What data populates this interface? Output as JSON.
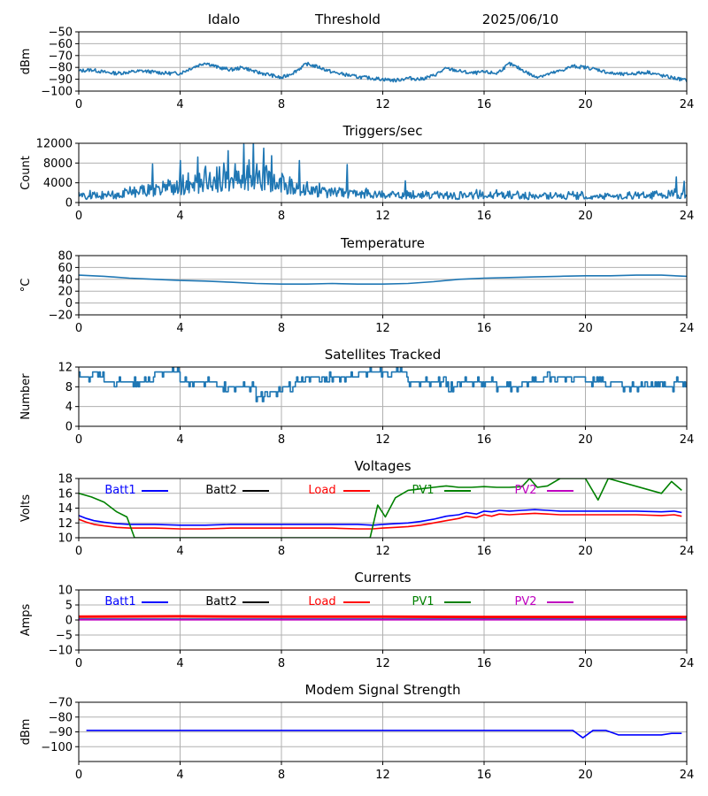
{
  "header": {
    "site": "Idalo",
    "mode": "Threshold",
    "date": "2025/06/10"
  },
  "colors": {
    "series_default": "#1f77b4",
    "grid": "#b0b0b0",
    "Batt1": "#0000ff",
    "Batt2": "#000000",
    "Load": "#ff0000",
    "PV1": "#008000",
    "PV2": "#bf00bf"
  },
  "chart_data": [
    {
      "id": "threshold",
      "type": "line",
      "title": "",
      "xlabel": "",
      "ylabel": "dBm",
      "xlim": [
        0,
        24
      ],
      "ylim": [
        -100,
        -50
      ],
      "xticks": [
        0,
        4,
        8,
        12,
        16,
        20,
        24
      ],
      "yticks": [
        -100,
        -90,
        -80,
        -70,
        -60,
        -50
      ],
      "grid": true,
      "series": [
        {
          "color": "#1f77b4",
          "x": [
            0,
            0.5,
            1,
            1.5,
            2,
            2.5,
            3,
            3.5,
            4,
            4.5,
            5,
            5.5,
            6,
            6.5,
            7,
            7.5,
            8,
            8.5,
            9,
            9.5,
            10,
            10.5,
            11,
            11.5,
            12,
            12.5,
            13,
            13.5,
            14,
            14.5,
            15,
            15.5,
            16,
            16.5,
            17,
            17.5,
            18,
            18.5,
            19,
            19.5,
            20,
            20.5,
            21,
            21.5,
            22,
            22.5,
            23,
            23.5,
            24
          ],
          "y": [
            -83,
            -82,
            -84,
            -85,
            -84,
            -83,
            -84,
            -85,
            -85,
            -80,
            -76,
            -80,
            -82,
            -80,
            -84,
            -86,
            -89,
            -84,
            -77,
            -80,
            -84,
            -86,
            -88,
            -89,
            -90,
            -91,
            -89,
            -90,
            -87,
            -81,
            -83,
            -85,
            -84,
            -85,
            -77,
            -82,
            -88,
            -86,
            -83,
            -79,
            -80,
            -82,
            -85,
            -86,
            -85,
            -84,
            -87,
            -89,
            -91
          ],
          "noise": 1.5
        }
      ]
    },
    {
      "id": "triggers",
      "type": "line",
      "title": "Triggers/sec",
      "xlabel": "",
      "ylabel": "Count",
      "xlim": [
        0,
        24
      ],
      "ylim": [
        0,
        12000
      ],
      "xticks": [
        0,
        4,
        8,
        12,
        16,
        20,
        24
      ],
      "yticks": [
        0,
        4000,
        8000,
        12000
      ],
      "grid": true,
      "series": [
        {
          "color": "#1f77b4",
          "x": [
            0,
            1,
            2,
            3,
            4,
            4.5,
            5,
            5.5,
            6,
            6.5,
            7,
            7.5,
            8,
            8.5,
            9,
            10,
            11,
            12,
            13,
            14,
            15,
            16,
            17,
            18,
            19,
            20,
            21,
            22,
            23,
            24
          ],
          "y": [
            1400,
            1500,
            1900,
            2600,
            3200,
            3600,
            4000,
            4400,
            4800,
            5300,
            5600,
            5000,
            4200,
            3300,
            2500,
            2000,
            1800,
            1600,
            1500,
            1400,
            1400,
            1500,
            1400,
            1300,
            1400,
            1400,
            1300,
            1300,
            1500,
            1900
          ],
          "spikes": [
            [
              2.9,
              7800
            ],
            [
              4.0,
              8500
            ],
            [
              4.7,
              9200
            ],
            [
              5.9,
              10500
            ],
            [
              6.5,
              11800
            ],
            [
              6.9,
              12500
            ],
            [
              7.3,
              11000
            ],
            [
              7.6,
              9500
            ],
            [
              8.7,
              8500
            ],
            [
              10.6,
              7700
            ],
            [
              12.9,
              4400
            ],
            [
              23.6,
              5200
            ],
            [
              23.9,
              4300
            ]
          ],
          "noise": 0.6
        }
      ]
    },
    {
      "id": "temperature",
      "type": "line",
      "title": "Temperature",
      "xlabel": "",
      "ylabel": "°C",
      "xlim": [
        0,
        24
      ],
      "ylim": [
        -20,
        80
      ],
      "xticks": [
        0,
        4,
        8,
        12,
        16,
        20,
        24
      ],
      "yticks": [
        -20,
        0,
        20,
        40,
        60,
        80
      ],
      "grid": true,
      "series": [
        {
          "color": "#1f77b4",
          "x": [
            0,
            1,
            2,
            3,
            4,
            5,
            6,
            7,
            8,
            9,
            10,
            11,
            12,
            13,
            14,
            15,
            16,
            17,
            18,
            19,
            20,
            21,
            22,
            23,
            24
          ],
          "y": [
            47,
            45,
            42,
            40,
            38,
            37,
            35,
            33,
            32,
            32,
            33,
            32,
            32,
            33,
            36,
            40,
            42,
            43,
            44,
            45,
            46,
            46,
            47,
            47,
            45
          ]
        }
      ]
    },
    {
      "id": "satellites",
      "type": "line",
      "title": "Satellites Tracked",
      "xlabel": "",
      "ylabel": "Number",
      "xlim": [
        0,
        24
      ],
      "ylim": [
        0,
        12
      ],
      "xticks": [
        0,
        4,
        8,
        12,
        16,
        20,
        24
      ],
      "yticks": [
        0,
        4,
        8,
        12
      ],
      "grid": true,
      "series": [
        {
          "color": "#1f77b4",
          "x": [
            0,
            0.5,
            1,
            1.5,
            2,
            2.5,
            3,
            3.5,
            4,
            4.5,
            5,
            5.5,
            6,
            6.5,
            7,
            7.5,
            8,
            8.5,
            9,
            9.5,
            10,
            10.5,
            11,
            11.5,
            12,
            12.5,
            13,
            13.5,
            14,
            14.5,
            15,
            15.5,
            16,
            16.5,
            17,
            17.5,
            18,
            18.5,
            19,
            19.5,
            20,
            20.5,
            21,
            21.5,
            22,
            22.5,
            23,
            23.5,
            24
          ],
          "y": [
            10,
            11,
            9,
            9,
            9,
            9,
            11,
            11,
            9,
            9,
            9,
            8,
            8,
            8,
            6,
            7,
            8,
            9,
            10,
            10,
            10,
            10,
            11,
            11,
            11,
            11,
            9,
            9,
            9,
            8,
            9,
            9,
            9,
            8,
            8,
            9,
            9,
            10,
            10,
            10,
            9,
            9,
            9,
            8,
            8,
            8,
            8,
            9,
            9
          ],
          "steps": true
        }
      ]
    },
    {
      "id": "voltages",
      "type": "line",
      "title": "Voltages",
      "xlabel": "",
      "ylabel": "Volts",
      "xlim": [
        0,
        24
      ],
      "ylim": [
        10,
        18
      ],
      "xticks": [
        0,
        4,
        8,
        12,
        16,
        20,
        24
      ],
      "yticks": [
        10,
        12,
        14,
        16,
        18
      ],
      "grid": true,
      "legend": [
        "Batt1",
        "Batt2",
        "Load",
        "PV1",
        "PV2"
      ],
      "series": [
        {
          "name": "Batt1",
          "color": "#0000ff",
          "x": [
            0,
            0.3,
            0.6,
            1,
            1.5,
            2,
            3,
            4,
            5,
            6,
            7,
            8,
            9,
            10,
            11,
            11.6,
            12,
            12.5,
            13,
            13.5,
            14,
            14.5,
            15,
            15.3,
            15.7,
            16,
            16.3,
            16.6,
            17,
            17.5,
            18,
            18.5,
            19,
            20,
            21,
            22,
            23,
            23.5,
            23.8
          ],
          "y": [
            13,
            12.6,
            12.3,
            12.1,
            11.9,
            11.8,
            11.8,
            11.7,
            11.7,
            11.8,
            11.8,
            11.8,
            11.8,
            11.8,
            11.8,
            11.7,
            11.8,
            11.9,
            12.0,
            12.2,
            12.5,
            12.9,
            13.1,
            13.4,
            13.2,
            13.6,
            13.5,
            13.7,
            13.6,
            13.7,
            13.8,
            13.7,
            13.6,
            13.6,
            13.6,
            13.6,
            13.5,
            13.6,
            13.4
          ]
        },
        {
          "name": "Load",
          "color": "#ff0000",
          "x": [
            0,
            0.3,
            0.6,
            1,
            1.5,
            2,
            3,
            4,
            5,
            6,
            7,
            8,
            9,
            10,
            11,
            11.6,
            12,
            12.5,
            13,
            13.5,
            14,
            14.5,
            15,
            15.3,
            15.7,
            16,
            16.3,
            16.6,
            17,
            17.5,
            18,
            18.5,
            19,
            20,
            21,
            22,
            23,
            23.5,
            23.8
          ],
          "y": [
            12.5,
            12.1,
            11.8,
            11.6,
            11.4,
            11.3,
            11.3,
            11.2,
            11.2,
            11.3,
            11.3,
            11.3,
            11.3,
            11.3,
            11.2,
            11.2,
            11.3,
            11.4,
            11.5,
            11.7,
            12.0,
            12.3,
            12.6,
            12.9,
            12.7,
            13.1,
            12.9,
            13.2,
            13.1,
            13.2,
            13.3,
            13.2,
            13.1,
            13.1,
            13.1,
            13.1,
            13.0,
            13.1,
            12.9
          ]
        },
        {
          "name": "PV1",
          "color": "#008000",
          "x": [
            0,
            0.5,
            1,
            1.5,
            1.9,
            2.2,
            11.5,
            11.8,
            12.1,
            12.5,
            13,
            13.5,
            14,
            14.5,
            15,
            15.5,
            16,
            16.5,
            17,
            17.5,
            17.8,
            18.1,
            18.5,
            19.0,
            19.3,
            20,
            20.5,
            20.9,
            23,
            23.4,
            23.8
          ],
          "y": [
            16,
            15.5,
            14.8,
            13.5,
            12.8,
            10,
            10,
            14.4,
            12.8,
            15.4,
            16.4,
            16.6,
            16.8,
            17,
            16.8,
            16.8,
            16.9,
            16.8,
            16.8,
            16.9,
            18,
            16.8,
            17.0,
            18,
            18,
            18,
            15.1,
            18,
            16,
            17.6,
            16.4
          ]
        },
        {
          "name": "PV2",
          "color": "#bf00bf",
          "x": [],
          "y": []
        },
        {
          "name": "Batt2",
          "color": "#000000",
          "x": [],
          "y": []
        }
      ]
    },
    {
      "id": "currents",
      "type": "line",
      "title": "Currents",
      "xlabel": "",
      "ylabel": "Amps",
      "xlim": [
        0,
        24
      ],
      "ylim": [
        -10,
        10
      ],
      "xticks": [
        0,
        4,
        8,
        12,
        16,
        20,
        24
      ],
      "yticks": [
        -10,
        -5,
        0,
        5,
        10
      ],
      "grid": true,
      "legend": [
        "Batt1",
        "Batt2",
        "Load",
        "PV1",
        "PV2"
      ],
      "series": [
        {
          "name": "Load",
          "color": "#ff0000",
          "x": [
            0,
            4,
            8,
            12,
            16,
            20,
            24
          ],
          "y": [
            1.1,
            1.2,
            1.1,
            1.1,
            1.0,
            1.0,
            1.0
          ],
          "width": 3
        },
        {
          "name": "PV1",
          "color": "#008000",
          "x": [
            0,
            24
          ],
          "y": [
            0.3,
            0.3
          ]
        },
        {
          "name": "Batt1",
          "color": "#0000ff",
          "x": [
            0,
            24
          ],
          "y": [
            0.2,
            0.2
          ]
        },
        {
          "name": "PV2",
          "color": "#bf00bf",
          "x": [
            0,
            24
          ],
          "y": [
            0.05,
            0.05
          ]
        }
      ]
    },
    {
      "id": "modem",
      "type": "line",
      "title": "Modem Signal Strength",
      "xlabel": "",
      "ylabel": "dBm",
      "xlim": [
        0,
        24
      ],
      "ylim": [
        -110,
        -70
      ],
      "xticks": [
        0,
        4,
        8,
        12,
        16,
        20,
        24
      ],
      "yticks": [
        -100,
        -90,
        -80,
        -70
      ],
      "grid": true,
      "series": [
        {
          "color": "#0000ff",
          "x": [
            0.3,
            19.5,
            19.9,
            20.3,
            20.8,
            21.3,
            23,
            23.4,
            23.8
          ],
          "y": [
            -89,
            -89,
            -94,
            -89,
            -89,
            -92,
            -92,
            -91,
            -91
          ]
        }
      ]
    }
  ]
}
